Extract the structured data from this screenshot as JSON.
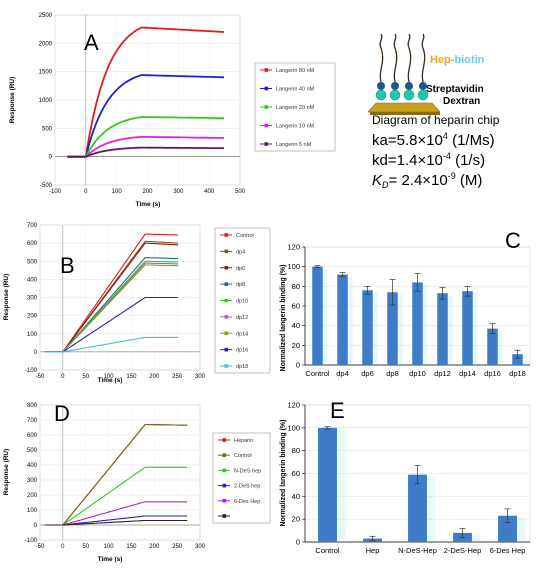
{
  "panels": {
    "a": {
      "letter": "A"
    },
    "b": {
      "letter": "B"
    },
    "c": {
      "letter": "C"
    },
    "d": {
      "letter": "D"
    },
    "e": {
      "letter": "E"
    }
  },
  "diagram": {
    "hep_label": "Hep-",
    "biotin_label": "biotin",
    "streptavidin_label": "Streptavidin",
    "dextran_label": "Dextran",
    "title": "Diagram of heparin chip",
    "ka": {
      "prefix": "ka=5.8×10",
      "exp": "4",
      "suffix": " (1/Ms)"
    },
    "kd": {
      "prefix": "kd=1.4×10",
      "exp": "-4",
      "suffix": " (1/s)"
    },
    "kd_eq": {
      "K": "K",
      "sub": "D",
      "prefix": "= 2.4×10",
      "exp": "-9",
      "suffix": " (M)"
    }
  },
  "colors": {
    "red": "#e41a1c",
    "blue": "#1f24c8",
    "green": "#2ecc1a",
    "magenta": "#e020e0",
    "purple": "#5a1a6a",
    "bar": "#3e7cc7",
    "cyan": "#7fe0f0",
    "hep_orange": "#f7a11a",
    "biotin_cyan": "#6ad0e6"
  },
  "chart_data": [
    {
      "id": "A",
      "type": "line",
      "xlabel": "Time (s)",
      "ylabel": "Response (RU)",
      "xlim": [
        -100,
        500
      ],
      "ylim": [
        -500,
        2500
      ],
      "xticks": [
        -100,
        0,
        100,
        200,
        300,
        400,
        500
      ],
      "yticks": [
        -500,
        0,
        500,
        1000,
        1500,
        2000,
        2500
      ],
      "legend_position": "right",
      "series": [
        {
          "name": "Langerin 80 nM",
          "color": "#e41a1c",
          "plateau": 2280,
          "end": 2200
        },
        {
          "name": "Langerin 40 nM",
          "color": "#1f24c8",
          "plateau": 1440,
          "end": 1400
        },
        {
          "name": "Langerin 20 nM",
          "color": "#2ecc1a",
          "plateau": 700,
          "end": 680
        },
        {
          "name": "Langerin 10 nM",
          "color": "#e020e0",
          "plateau": 350,
          "end": 330
        },
        {
          "name": "Langerin 5 nM",
          "color": "#5a1a6a",
          "plateau": 160,
          "end": 150
        }
      ]
    },
    {
      "id": "B",
      "type": "line",
      "xlabel": "Time (s)",
      "ylabel": "Response (RU)",
      "xlim": [
        -50,
        300
      ],
      "ylim": [
        -100,
        700
      ],
      "xticks": [
        -50,
        0,
        50,
        100,
        150,
        200,
        250,
        300
      ],
      "yticks": [
        -100,
        0,
        100,
        200,
        300,
        400,
        500,
        600,
        700
      ],
      "legend_position": "right",
      "series": [
        {
          "name": "Control",
          "color": "#e41a1c",
          "plateau": 650,
          "end": 645
        },
        {
          "name": "dp4",
          "color": "#7a5a1a",
          "plateau": 610,
          "end": 600
        },
        {
          "name": "dp6",
          "color": "#8b1a1a",
          "plateau": 600,
          "end": 590
        },
        {
          "name": "dp8",
          "color": "#1a6a8a",
          "plateau": 520,
          "end": 515
        },
        {
          "name": "dp10",
          "color": "#2ecc1a",
          "plateau": 500,
          "end": 495
        },
        {
          "name": "dp12",
          "color": "#b060b0",
          "plateau": 490,
          "end": 485
        },
        {
          "name": "dp14",
          "color": "#8aa020",
          "plateau": 480,
          "end": 475
        },
        {
          "name": "dp16",
          "color": "#1f24c8",
          "plateau": 300,
          "end": 300
        },
        {
          "name": "dp18",
          "color": "#4ab8e8",
          "plateau": 80,
          "end": 80
        }
      ]
    },
    {
      "id": "C",
      "type": "bar",
      "ylabel": "Normalized langerin binding (%)",
      "ylim": [
        0,
        120
      ],
      "yticks": [
        0,
        20,
        40,
        60,
        80,
        100,
        120
      ],
      "categories": [
        "Control",
        "dp4",
        "dp6",
        "dp8",
        "dp10",
        "dp12",
        "dp14",
        "dp16",
        "dp18"
      ],
      "values": [
        100,
        92,
        76,
        74,
        84,
        73,
        75,
        37,
        11
      ],
      "errors": [
        1,
        2,
        4,
        13,
        9,
        6,
        5,
        5,
        4
      ]
    },
    {
      "id": "D",
      "type": "line",
      "xlabel": "Time (s)",
      "ylabel": "Response (RU)",
      "xlim": [
        -50,
        300
      ],
      "ylim": [
        -100,
        800
      ],
      "xticks": [
        -50,
        0,
        50,
        100,
        150,
        200,
        250,
        300
      ],
      "yticks": [
        -100,
        0,
        100,
        200,
        300,
        400,
        500,
        600,
        700,
        800
      ],
      "legend_position": "right",
      "series": [
        {
          "name": "Heparin",
          "color": "#e41a1c",
          "plateau": 670,
          "end": 665
        },
        {
          "name": "Control",
          "color": "#7a6a1a",
          "plateau": 670,
          "end": 665
        },
        {
          "name": "N-DeS hep",
          "color": "#2ecc1a",
          "plateau": 385,
          "end": 385
        },
        {
          "name": "2-DeS hep",
          "color": "#1f24c8",
          "plateau": 60,
          "end": 60
        },
        {
          "name": "6-Des Hep",
          "color": "#b020e0",
          "plateau": 155,
          "end": 155
        },
        {
          "name": "",
          "color": "#3a1a1a",
          "plateau": 30,
          "end": 30
        }
      ]
    },
    {
      "id": "E",
      "type": "bar",
      "ylabel": "Normalized langerin binding (%)",
      "ylim": [
        0,
        120
      ],
      "yticks": [
        0,
        20,
        40,
        60,
        80,
        100,
        120
      ],
      "categories": [
        "Control",
        "Hep",
        "N-DeS-Hep",
        "2-DeS-Hep",
        "6-Des Hep"
      ],
      "values": [
        100,
        3,
        59,
        8,
        23
      ],
      "errors": [
        1,
        2,
        8,
        4,
        6
      ]
    }
  ]
}
